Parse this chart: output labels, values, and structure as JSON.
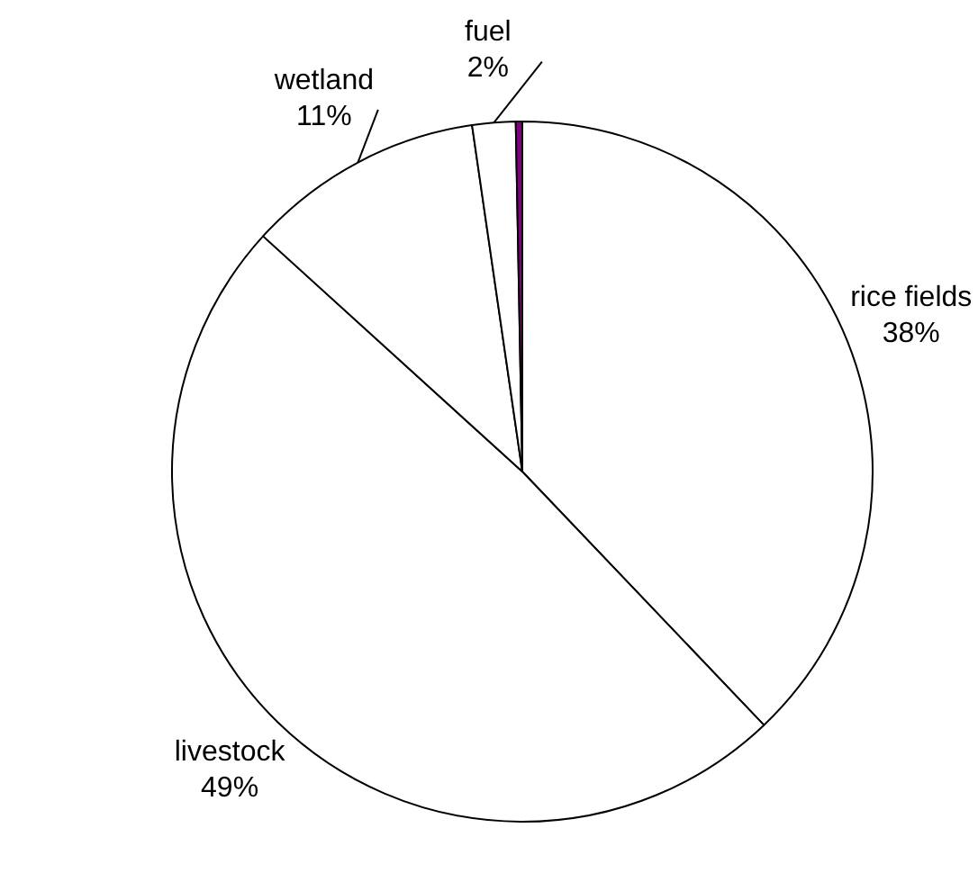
{
  "chart_data": {
    "type": "pie",
    "categories": [
      "rice fields",
      "livestock",
      "wetland",
      "fuel",
      null
    ],
    "values": [
      38,
      49,
      11,
      2,
      0.3
    ],
    "value_labels": [
      "38%",
      "49%",
      "11%",
      "2%",
      null
    ],
    "colors": [
      "#ffffff",
      "#ffffff",
      "#ffffff",
      "#ffffff",
      "#800080"
    ],
    "legend": false
  }
}
